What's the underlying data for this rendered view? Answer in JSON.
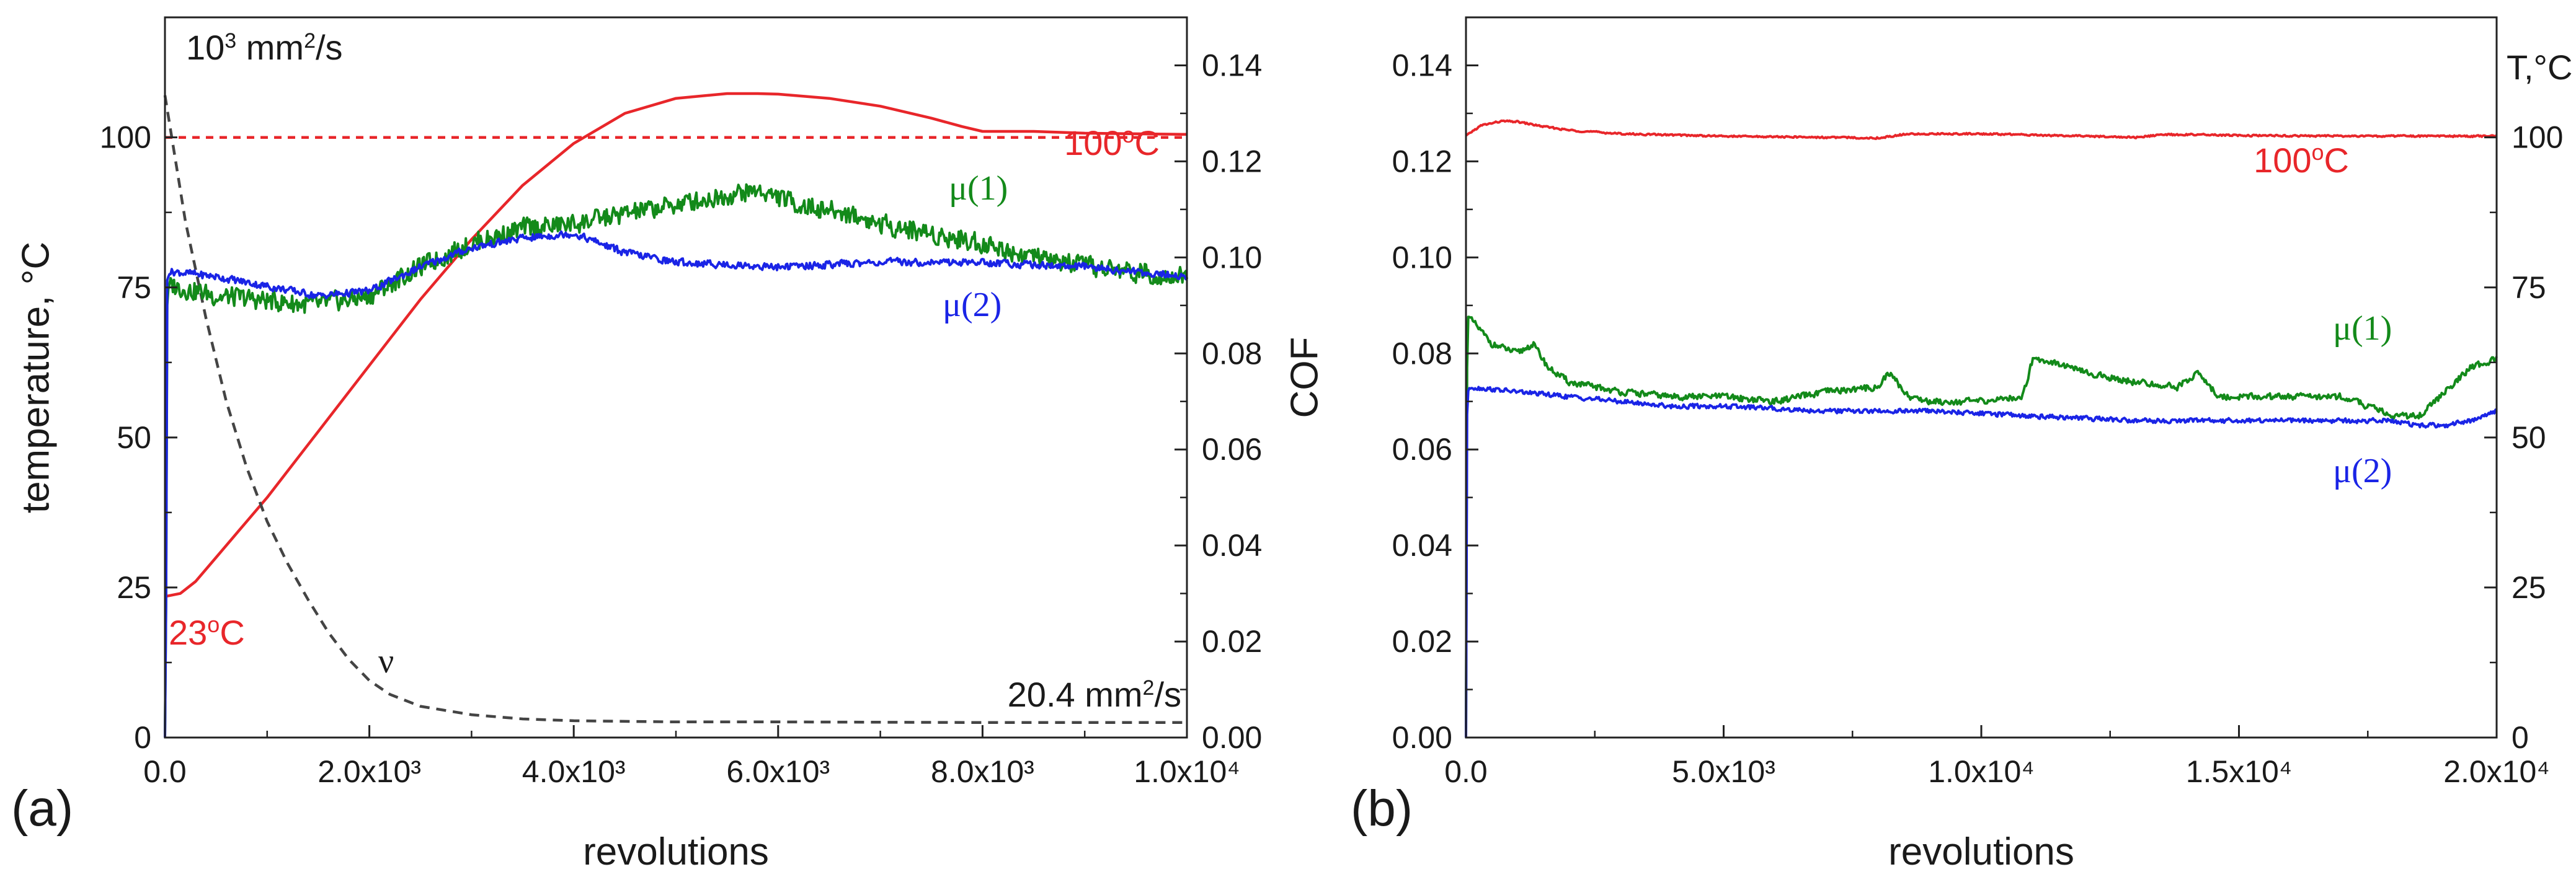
{
  "chart_data": [
    {
      "panel": "(a)",
      "type": "line",
      "xlabel": "revolutions",
      "ylabel_left": "temperature, °C",
      "ylabel_right": "COF",
      "xlim": [
        0,
        10000
      ],
      "ylim_left": [
        0,
        120
      ],
      "ylim_right": [
        0,
        0.15
      ],
      "x_ticks": [
        {
          "v": 0,
          "label": "0.0"
        },
        {
          "v": 2000,
          "label": "2.0x10³"
        },
        {
          "v": 4000,
          "label": "4.0x10³"
        },
        {
          "v": 6000,
          "label": "6.0x10³"
        },
        {
          "v": 8000,
          "label": "8.0x10³"
        },
        {
          "v": 10000,
          "label": "1.0x10⁴"
        }
      ],
      "y_left_ticks": [
        {
          "v": 0,
          "label": "0"
        },
        {
          "v": 25,
          "label": "25"
        },
        {
          "v": 50,
          "label": "50"
        },
        {
          "v": 75,
          "label": "75"
        },
        {
          "v": 100,
          "label": "100"
        }
      ],
      "y_right_ticks": [
        {
          "v": 0.0,
          "label": "0.00"
        },
        {
          "v": 0.02,
          "label": "0.02"
        },
        {
          "v": 0.04,
          "label": "0.04"
        },
        {
          "v": 0.06,
          "label": "0.06"
        },
        {
          "v": 0.08,
          "label": "0.08"
        },
        {
          "v": 0.1,
          "label": "0.10"
        },
        {
          "v": 0.12,
          "label": "0.12"
        },
        {
          "v": 0.14,
          "label": "0.14"
        }
      ],
      "series": [
        {
          "key": "temperature",
          "axis": "left",
          "color": "#e8262a",
          "style": "solid",
          "noise": 0,
          "x": [
            0,
            150,
            300,
            500,
            800,
            1000,
            1500,
            2000,
            2500,
            3000,
            3500,
            4000,
            4500,
            5000,
            5500,
            5800,
            6000,
            6500,
            7000,
            7500,
            7800,
            8000,
            8500,
            9000,
            9500,
            10000
          ],
          "y": [
            23.5,
            24,
            26,
            30,
            36,
            40,
            51,
            62,
            73,
            83,
            92,
            99,
            104,
            106.5,
            107.3,
            107.3,
            107.2,
            106.5,
            105.2,
            103.2,
            101.8,
            101,
            101,
            100.7,
            100.6,
            100.5
          ]
        },
        {
          "key": "setpoint",
          "axis": "left",
          "color": "#e8262a",
          "style": "dash-short",
          "noise": 0,
          "x": [
            0,
            10000
          ],
          "y": [
            100,
            100
          ]
        },
        {
          "key": "viscosity",
          "axis": "left",
          "color": "#444444",
          "style": "dash",
          "noise": 0,
          "x": [
            0,
            200,
            400,
            600,
            800,
            1000,
            1200,
            1400,
            1600,
            1800,
            2000,
            2200,
            2500,
            3000,
            3500,
            4000,
            5000,
            6000,
            8000,
            10000
          ],
          "y": [
            107,
            86,
            70,
            56,
            45,
            36,
            29,
            23,
            17.5,
            13,
            9.5,
            7.2,
            5.2,
            3.8,
            3.1,
            2.8,
            2.6,
            2.6,
            2.5,
            2.5
          ]
        },
        {
          "key": "mu1",
          "name": "μ(1)",
          "axis": "right",
          "color": "#138a1a",
          "style": "solid",
          "noise": 0.0022,
          "x": [
            0,
            10,
            20,
            40,
            100,
            500,
            1000,
            1500,
            2000,
            2500,
            3000,
            3500,
            4000,
            4500,
            5000,
            5500,
            5800,
            6200,
            6700,
            7000,
            7500,
            8000,
            8500,
            9000,
            9500,
            10000
          ],
          "y": [
            0,
            0.02,
            0.09,
            0.094,
            0.094,
            0.092,
            0.091,
            0.09,
            0.092,
            0.098,
            0.103,
            0.106,
            0.107,
            0.109,
            0.111,
            0.113,
            0.114,
            0.111,
            0.109,
            0.107,
            0.105,
            0.103,
            0.1,
            0.098,
            0.097,
            0.096
          ]
        },
        {
          "key": "mu2",
          "name": "μ(2)",
          "axis": "right",
          "color": "#1a24e6",
          "style": "solid",
          "noise": 0.0008,
          "x": [
            0,
            10,
            20,
            40,
            100,
            500,
            1000,
            1500,
            2000,
            2500,
            3000,
            3500,
            4000,
            4500,
            5000,
            6000,
            7000,
            8000,
            9000,
            10000
          ],
          "y": [
            0,
            0.02,
            0.095,
            0.097,
            0.097,
            0.096,
            0.094,
            0.092,
            0.093,
            0.098,
            0.102,
            0.104,
            0.105,
            0.101,
            0.099,
            0.098,
            0.099,
            0.099,
            0.098,
            0.096
          ]
        }
      ],
      "annotations": {
        "visc_start_base": "10",
        "visc_start_exp": "3",
        "visc_start_unit": " mm",
        "visc_start_unit_exp": "2",
        "visc_start_suffix": "/s",
        "visc_end_value": "20.4 mm",
        "visc_end_exp": "2",
        "visc_end_suffix": "/s",
        "temp_start": "23",
        "temp_end": "100",
        "deg": "o",
        "celsius": "C",
        "nu": "ν",
        "mu1": "μ(1)",
        "mu2": "μ(2)"
      }
    },
    {
      "panel": "(b)",
      "type": "line",
      "xlabel": "revolutions",
      "ylabel_left": "",
      "ylabel_right": "T,°C",
      "xlim": [
        0,
        20000
      ],
      "ylim_left": [
        0,
        0.15
      ],
      "ylim_right": [
        0,
        120
      ],
      "x_ticks": [
        {
          "v": 0,
          "label": "0.0"
        },
        {
          "v": 5000,
          "label": "5.0x10³"
        },
        {
          "v": 10000,
          "label": "1.0x10⁴"
        },
        {
          "v": 15000,
          "label": "1.5x10⁴"
        },
        {
          "v": 20000,
          "label": "2.0x10⁴"
        }
      ],
      "y_left_ticks": [
        {
          "v": 0.0,
          "label": "0.00"
        },
        {
          "v": 0.02,
          "label": "0.02"
        },
        {
          "v": 0.04,
          "label": "0.04"
        },
        {
          "v": 0.06,
          "label": "0.06"
        },
        {
          "v": 0.08,
          "label": "0.08"
        },
        {
          "v": 0.1,
          "label": "0.10"
        },
        {
          "v": 0.12,
          "label": "0.12"
        },
        {
          "v": 0.14,
          "label": "0.14"
        }
      ],
      "y_right_ticks": [
        {
          "v": 0,
          "label": "0"
        },
        {
          "v": 25,
          "label": "25"
        },
        {
          "v": 50,
          "label": "50"
        },
        {
          "v": 75,
          "label": "75"
        },
        {
          "v": 100,
          "label": "100"
        }
      ],
      "series": [
        {
          "key": "temperature",
          "axis": "right",
          "color": "#e8262a",
          "style": "solid",
          "noise": 0.15,
          "x": [
            0,
            300,
            700,
            1000,
            1500,
            2000,
            3000,
            5000,
            7000,
            8000,
            8500,
            9000,
            10000,
            12000,
            13000,
            13500,
            14000,
            15000,
            17000,
            20000
          ],
          "y": [
            100.3,
            102,
            102.7,
            102.6,
            101.8,
            101.2,
            100.6,
            100.2,
            100,
            99.9,
            100.5,
            100.6,
            100.6,
            100.2,
            100,
            100.4,
            100.5,
            100.3,
            100.2,
            100.2
          ]
        },
        {
          "key": "mu1",
          "name": "μ(1)",
          "axis": "left",
          "color": "#138a1a",
          "style": "solid",
          "noise": 0.0007,
          "x": [
            0,
            10,
            30,
            100,
            500,
            1000,
            1300,
            1600,
            2000,
            3000,
            4000,
            5000,
            6000,
            7000,
            8000,
            8200,
            8600,
            9000,
            10000,
            10800,
            11000,
            11500,
            12000,
            13000,
            13800,
            14200,
            14600,
            15000,
            16000,
            17000,
            17500,
            18000,
            18500,
            19000,
            19500,
            20000
          ],
          "y": [
            0,
            0.06,
            0.088,
            0.087,
            0.082,
            0.08,
            0.082,
            0.077,
            0.074,
            0.072,
            0.071,
            0.071,
            0.07,
            0.072,
            0.073,
            0.076,
            0.071,
            0.07,
            0.07,
            0.071,
            0.079,
            0.078,
            0.076,
            0.074,
            0.073,
            0.076,
            0.071,
            0.071,
            0.071,
            0.071,
            0.069,
            0.067,
            0.067,
            0.072,
            0.077,
            0.079
          ]
        },
        {
          "key": "mu2",
          "name": "μ(2)",
          "axis": "left",
          "color": "#1a24e6",
          "style": "solid",
          "noise": 0.0005,
          "x": [
            0,
            10,
            30,
            100,
            1000,
            2000,
            3000,
            4000,
            5000,
            7000,
            9000,
            11000,
            13000,
            15000,
            17000,
            18000,
            18500,
            19000,
            19500,
            20000
          ],
          "y": [
            0,
            0.06,
            0.072,
            0.073,
            0.072,
            0.071,
            0.07,
            0.069,
            0.069,
            0.068,
            0.068,
            0.067,
            0.066,
            0.066,
            0.066,
            0.066,
            0.065,
            0.065,
            0.066,
            0.068
          ]
        }
      ],
      "annotations": {
        "temp_value": "100",
        "deg": "o",
        "celsius": "C",
        "mu1": "μ(1)",
        "mu2": "μ(2)"
      }
    }
  ]
}
